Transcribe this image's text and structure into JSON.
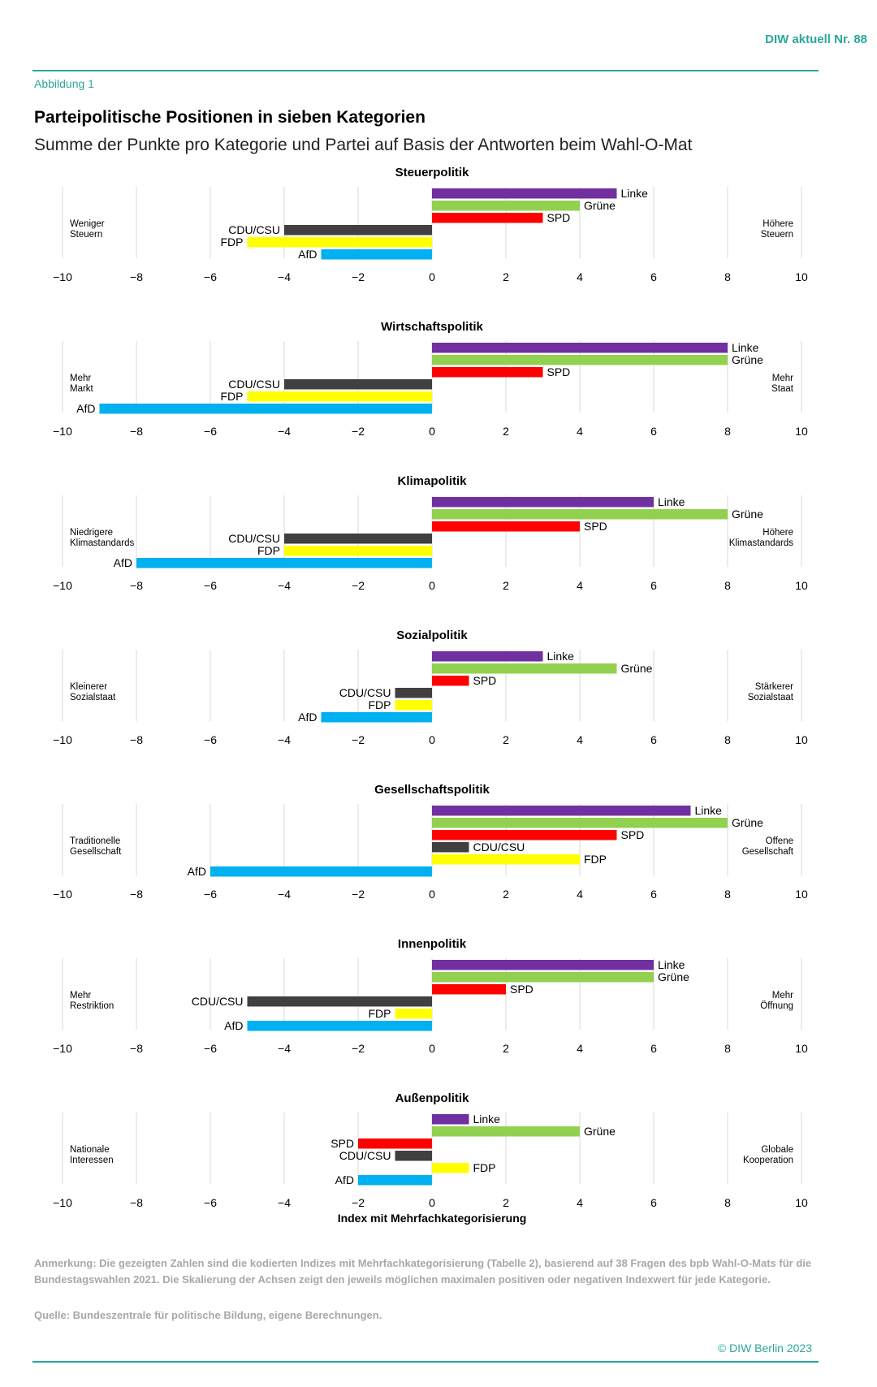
{
  "header": {
    "publication": "DIW aktuell Nr. 88",
    "figure_label": "Abbildung 1",
    "title": "Parteipolitische Positionen in sieben Kategorien",
    "subtitle": "Summe der Punkte pro Kategorie und Partei auf Basis der Antworten beim Wahl-O-Mat"
  },
  "colors": {
    "Linke": "#7030a0",
    "Grüne": "#92d050",
    "SPD": "#ff0000",
    "CDU/CSU": "#404040",
    "FDP": "#ffff00",
    "AfD": "#00b0f0",
    "grid": "#d9d9d9",
    "accent": "#2aa79d"
  },
  "chart_data": [
    {
      "type": "bar",
      "orientation": "horizontal",
      "title": "Steuerpolitik",
      "left_label": [
        "Weniger",
        "Steuern"
      ],
      "right_label": [
        "Höhere",
        "Steuern"
      ],
      "xlim": [
        -10,
        10
      ],
      "xticks": [
        -10,
        -8,
        -6,
        -4,
        -2,
        0,
        2,
        4,
        6,
        8,
        10
      ],
      "tick_labels": [
        "−10",
        "−8",
        "−6",
        "−4",
        "−2",
        "0",
        "2",
        "4",
        "6",
        "8",
        "10"
      ],
      "bars": [
        {
          "party": "Linke",
          "value": 5
        },
        {
          "party": "Grüne",
          "value": 4
        },
        {
          "party": "SPD",
          "value": 3
        },
        {
          "party": "CDU/CSU",
          "value": -4
        },
        {
          "party": "FDP",
          "value": -5
        },
        {
          "party": "AfD",
          "value": -3
        }
      ]
    },
    {
      "type": "bar",
      "orientation": "horizontal",
      "title": "Wirtschaftspolitik",
      "left_label": [
        "Mehr",
        "Markt"
      ],
      "right_label": [
        "Mehr",
        "Staat"
      ],
      "xlim": [
        -10,
        10
      ],
      "xticks": [
        -10,
        -8,
        -6,
        -4,
        -2,
        0,
        2,
        4,
        6,
        8,
        10
      ],
      "tick_labels": [
        "−10",
        "−8",
        "−6",
        "−4",
        "−2",
        "0",
        "2",
        "4",
        "6",
        "8",
        "10"
      ],
      "bars": [
        {
          "party": "Linke",
          "value": 8
        },
        {
          "party": "Grüne",
          "value": 8
        },
        {
          "party": "SPD",
          "value": 3
        },
        {
          "party": "CDU/CSU",
          "value": -4
        },
        {
          "party": "FDP",
          "value": -5
        },
        {
          "party": "AfD",
          "value": -9
        }
      ]
    },
    {
      "type": "bar",
      "orientation": "horizontal",
      "title": "Klimapolitik",
      "left_label": [
        "Niedrigere",
        "Klimastandards"
      ],
      "right_label": [
        "Höhere",
        "Klimastandards"
      ],
      "xlim": [
        -10,
        10
      ],
      "xticks": [
        -10,
        -8,
        -6,
        -4,
        -2,
        0,
        2,
        4,
        6,
        8,
        10
      ],
      "tick_labels": [
        "−10",
        "−8",
        "−6",
        "−4",
        "−2",
        "0",
        "2",
        "4",
        "6",
        "8",
        "10"
      ],
      "bars": [
        {
          "party": "Linke",
          "value": 6
        },
        {
          "party": "Grüne",
          "value": 8
        },
        {
          "party": "SPD",
          "value": 4
        },
        {
          "party": "CDU/CSU",
          "value": -4
        },
        {
          "party": "FDP",
          "value": -4
        },
        {
          "party": "AfD",
          "value": -8
        }
      ]
    },
    {
      "type": "bar",
      "orientation": "horizontal",
      "title": "Sozialpolitik",
      "left_label": [
        "Kleinerer",
        "Sozialstaat"
      ],
      "right_label": [
        "Stärkerer",
        "Sozialstaat"
      ],
      "xlim": [
        -10,
        10
      ],
      "xticks": [
        -10,
        -8,
        -6,
        -4,
        -2,
        0,
        2,
        4,
        6,
        8,
        10
      ],
      "tick_labels": [
        "−10",
        "−8",
        "−6",
        "−4",
        "−2",
        "0",
        "2",
        "4",
        "6",
        "8",
        "10"
      ],
      "bars": [
        {
          "party": "Linke",
          "value": 3
        },
        {
          "party": "Grüne",
          "value": 5
        },
        {
          "party": "SPD",
          "value": 1
        },
        {
          "party": "CDU/CSU",
          "value": -1
        },
        {
          "party": "FDP",
          "value": -1
        },
        {
          "party": "AfD",
          "value": -3
        }
      ]
    },
    {
      "type": "bar",
      "orientation": "horizontal",
      "title": "Gesellschaftspolitik",
      "left_label": [
        "Traditionelle",
        "Gesellschaft"
      ],
      "right_label": [
        "Offene",
        "Gesellschaft"
      ],
      "xlim": [
        -10,
        10
      ],
      "xticks": [
        -10,
        -8,
        -6,
        -4,
        -2,
        0,
        2,
        4,
        6,
        8,
        10
      ],
      "tick_labels": [
        "−10",
        "−8",
        "−6",
        "−4",
        "−2",
        "0",
        "2",
        "4",
        "6",
        "8",
        "10"
      ],
      "bars": [
        {
          "party": "Linke",
          "value": 7
        },
        {
          "party": "Grüne",
          "value": 8
        },
        {
          "party": "SPD",
          "value": 5
        },
        {
          "party": "CDU/CSU",
          "value": 1
        },
        {
          "party": "FDP",
          "value": 4
        },
        {
          "party": "AfD",
          "value": -6
        }
      ]
    },
    {
      "type": "bar",
      "orientation": "horizontal",
      "title": "Innenpolitik",
      "left_label": [
        "Mehr",
        "Restriktion"
      ],
      "right_label": [
        "Mehr",
        "Öffnung"
      ],
      "xlim": [
        -10,
        10
      ],
      "xticks": [
        -10,
        -8,
        -6,
        -4,
        -2,
        0,
        2,
        4,
        6,
        8,
        10
      ],
      "tick_labels": [
        "−10",
        "−8",
        "−6",
        "−4",
        "−2",
        "0",
        "2",
        "4",
        "6",
        "8",
        "10"
      ],
      "bars": [
        {
          "party": "Linke",
          "value": 6
        },
        {
          "party": "Grüne",
          "value": 6
        },
        {
          "party": "SPD",
          "value": 2
        },
        {
          "party": "CDU/CSU",
          "value": -5
        },
        {
          "party": "FDP",
          "value": -1
        },
        {
          "party": "AfD",
          "value": -5
        }
      ]
    },
    {
      "type": "bar",
      "orientation": "horizontal",
      "title": "Außenpolitik",
      "left_label": [
        "Nationale",
        "Interessen"
      ],
      "right_label": [
        "Globale",
        "Kooperation"
      ],
      "xlim": [
        -10,
        10
      ],
      "xticks": [
        -10,
        -8,
        -6,
        -4,
        -2,
        0,
        2,
        4,
        6,
        8,
        10
      ],
      "tick_labels": [
        "−10",
        "−8",
        "−6",
        "−4",
        "−2",
        "0",
        "2",
        "4",
        "6",
        "8",
        "10"
      ],
      "xlabel": "Index mit Mehrfachkategorisierung",
      "bars": [
        {
          "party": "Linke",
          "value": 1
        },
        {
          "party": "Grüne",
          "value": 4
        },
        {
          "party": "SPD",
          "value": -2
        },
        {
          "party": "CDU/CSU",
          "value": -1
        },
        {
          "party": "FDP",
          "value": 1
        },
        {
          "party": "AfD",
          "value": -2
        }
      ]
    }
  ],
  "footer": {
    "note": "Anmerkung: Die gezeigten Zahlen sind die kodierten Indizes mit Mehrfachkategorisierung (Tabelle 2), basierend auf 38 Fragen des bpb Wahl-O-Mats für die Bundestagswahlen 2021. Die Skalierung der Achsen zeigt den jeweils möglichen maximalen positiven oder negativen Indexwert für jede Kategorie.",
    "source": "Quelle: Bundeszentrale für politische Bildung, eigene Berechnungen.",
    "copyright": "© DIW Berlin 2023"
  }
}
